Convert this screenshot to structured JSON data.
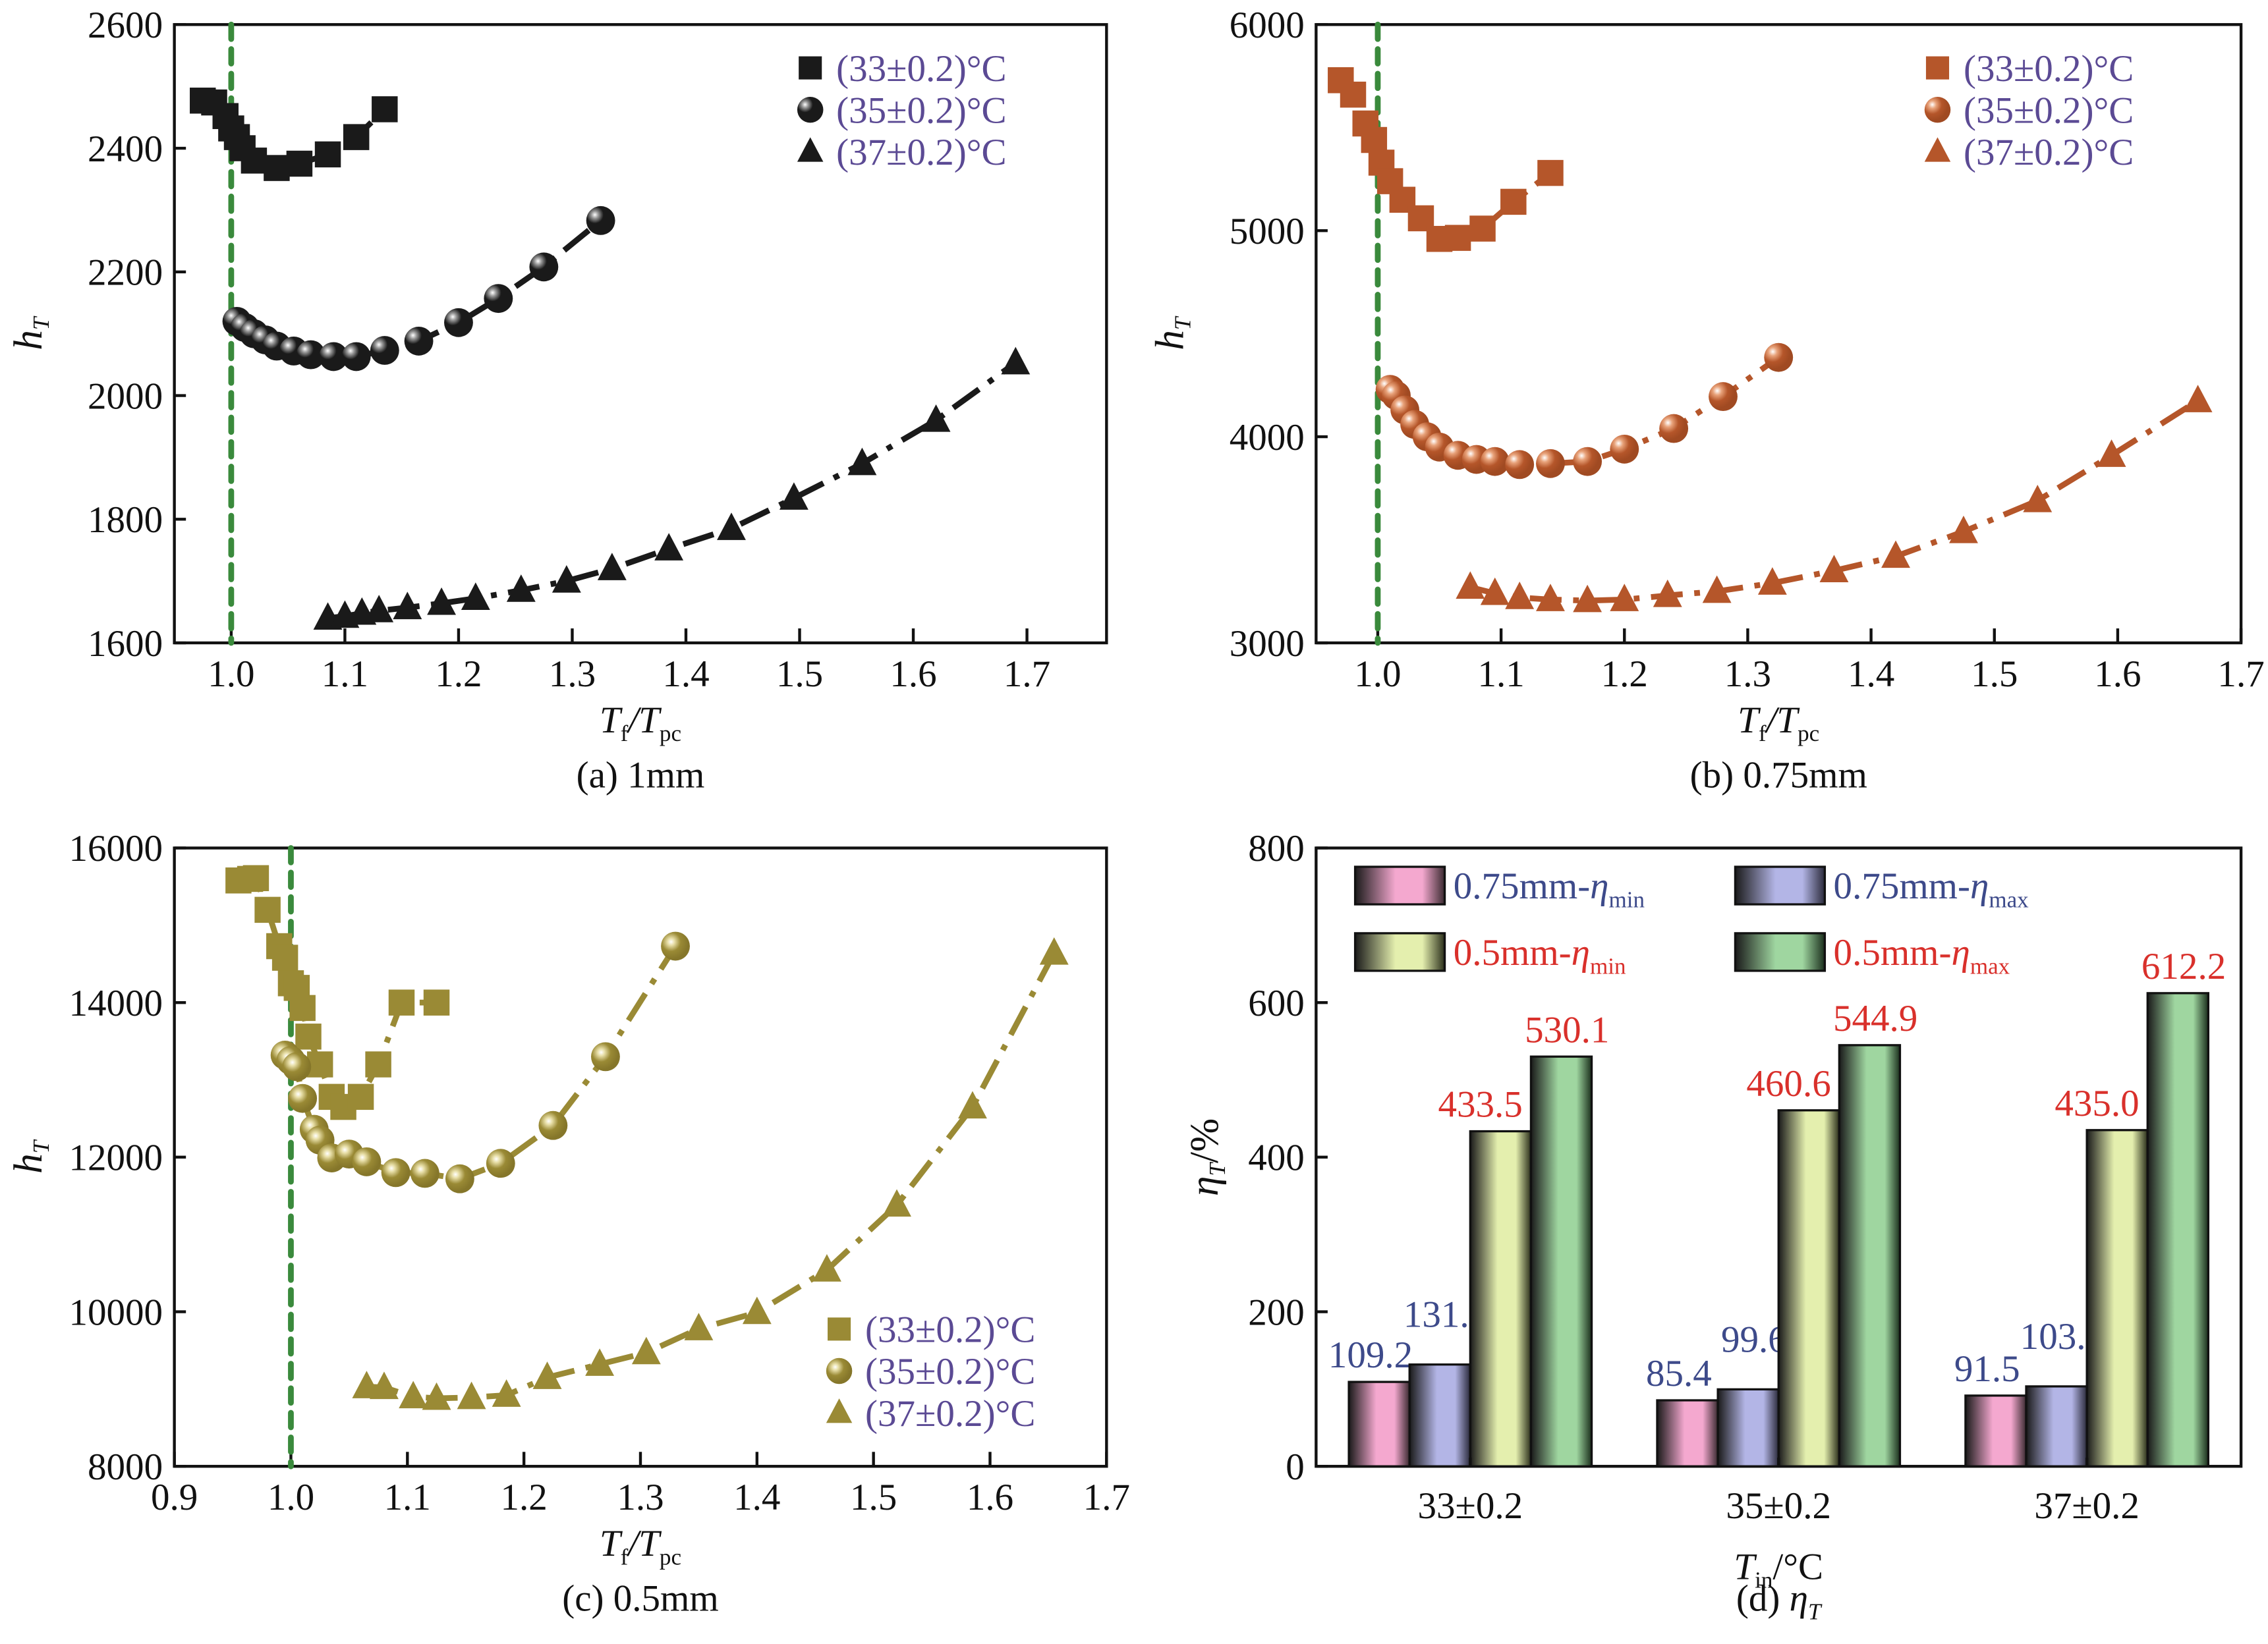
{
  "chart_data": [
    {
      "type": "line",
      "panel": "a",
      "caption": "(a) 1mm",
      "xlabel": "Tf/Tpc",
      "ylabel": "hT",
      "xlim": [
        0.95,
        1.77
      ],
      "ylim": [
        1600,
        2600
      ],
      "xticks": [
        1.0,
        1.1,
        1.2,
        1.3,
        1.4,
        1.5,
        1.6,
        1.7
      ],
      "yticks": [
        1600,
        1800,
        2000,
        2200,
        2400,
        2600
      ],
      "reference_line_x": 1.0,
      "legend_position": "top-right",
      "color": "#1a1a1a",
      "series": [
        {
          "name": "(33±0.2)°C",
          "marker": "square",
          "x": [
            0.975,
            0.985,
            0.995,
            1.0,
            1.005,
            1.01,
            1.02,
            1.04,
            1.06,
            1.085,
            1.11,
            1.135
          ],
          "y": [
            2477,
            2474,
            2452,
            2432,
            2418,
            2400,
            2380,
            2368,
            2375,
            2390,
            2418,
            2463
          ]
        },
        {
          "name": "(35±0.2)°C",
          "marker": "circle",
          "x": [
            1.005,
            1.012,
            1.02,
            1.03,
            1.04,
            1.055,
            1.07,
            1.09,
            1.11,
            1.135,
            1.165,
            1.2,
            1.235,
            1.275,
            1.325
          ],
          "y": [
            2120,
            2110,
            2100,
            2090,
            2080,
            2072,
            2066,
            2063,
            2063,
            2073,
            2088,
            2118,
            2157,
            2208,
            2283
          ]
        },
        {
          "name": "(37±0.2)°C",
          "marker": "triangle",
          "x": [
            1.085,
            1.1,
            1.115,
            1.13,
            1.155,
            1.185,
            1.215,
            1.255,
            1.295,
            1.335,
            1.385,
            1.44,
            1.495,
            1.555,
            1.62,
            1.69
          ],
          "y": [
            1640,
            1643,
            1648,
            1652,
            1657,
            1664,
            1672,
            1685,
            1700,
            1720,
            1752,
            1785,
            1834,
            1890,
            1960,
            2053
          ]
        }
      ]
    },
    {
      "type": "line",
      "panel": "b",
      "caption": "(b) 0.75mm",
      "xlabel": "Tf/Tpc",
      "ylabel": "hT",
      "xlim": [
        0.95,
        1.7
      ],
      "ylim": [
        3000,
        6000
      ],
      "xticks": [
        1.0,
        1.1,
        1.2,
        1.3,
        1.4,
        1.5,
        1.6,
        1.7
      ],
      "yticks": [
        3000,
        4000,
        5000,
        6000
      ],
      "reference_line_x": 1.0,
      "legend_position": "top-right",
      "color": "#b5562a",
      "series": [
        {
          "name": "(33±0.2)°C",
          "marker": "square",
          "x": [
            0.97,
            0.98,
            0.99,
            0.997,
            1.003,
            1.01,
            1.02,
            1.035,
            1.05,
            1.065,
            1.085,
            1.11,
            1.14
          ],
          "y": [
            5730,
            5660,
            5520,
            5440,
            5330,
            5240,
            5150,
            5060,
            4960,
            4965,
            5010,
            5140,
            5280
          ]
        },
        {
          "name": "(35±0.2)°C",
          "marker": "circle",
          "x": [
            1.01,
            1.015,
            1.022,
            1.03,
            1.04,
            1.05,
            1.065,
            1.08,
            1.095,
            1.115,
            1.14,
            1.17,
            1.2,
            1.24,
            1.28,
            1.325
          ],
          "y": [
            4230,
            4200,
            4130,
            4060,
            4000,
            3950,
            3910,
            3890,
            3880,
            3865,
            3870,
            3880,
            3940,
            4040,
            4195,
            4385
          ]
        },
        {
          "name": "(37±0.2)°C",
          "marker": "triangle",
          "x": [
            1.075,
            1.095,
            1.115,
            1.14,
            1.17,
            1.2,
            1.235,
            1.275,
            1.32,
            1.37,
            1.42,
            1.475,
            1.535,
            1.595,
            1.665
          ],
          "y": [
            3270,
            3240,
            3220,
            3210,
            3205,
            3210,
            3230,
            3250,
            3290,
            3350,
            3420,
            3540,
            3690,
            3910,
            4175
          ]
        }
      ]
    },
    {
      "type": "line",
      "panel": "c",
      "caption": "(c) 0.5mm",
      "xlabel": "Tf/Tpc",
      "ylabel": "hT",
      "xlim": [
        0.9,
        1.7
      ],
      "ylim": [
        8000,
        16000
      ],
      "xticks": [
        0.9,
        1.0,
        1.1,
        1.2,
        1.3,
        1.4,
        1.5,
        1.6,
        1.7
      ],
      "yticks": [
        8000,
        10000,
        12000,
        14000,
        16000
      ],
      "reference_line_x": 1.0,
      "legend_position": "bottom-right",
      "color": "#9a8a35",
      "series": [
        {
          "name": "(33±0.2)°C",
          "marker": "square",
          "x": [
            0.955,
            0.965,
            0.97,
            0.98,
            0.99,
            0.995,
            1.0,
            1.005,
            1.01,
            1.015,
            1.025,
            1.035,
            1.045,
            1.06,
            1.075,
            1.095,
            1.125
          ],
          "y": [
            15580,
            15600,
            15610,
            15200,
            14730,
            14580,
            14250,
            14190,
            13930,
            13560,
            13200,
            12780,
            12650,
            12780,
            13200,
            14000,
            14000
          ]
        },
        {
          "name": "(35±0.2)°C",
          "marker": "circle",
          "x": [
            0.995,
            1.0,
            1.005,
            1.01,
            1.02,
            1.025,
            1.035,
            1.05,
            1.065,
            1.09,
            1.115,
            1.145,
            1.18,
            1.225,
            1.27,
            1.33
          ],
          "y": [
            13320,
            13250,
            13170,
            12760,
            12360,
            12220,
            11990,
            12040,
            11940,
            11800,
            11790,
            11720,
            11920,
            12410,
            13300,
            14730
          ]
        },
        {
          "name": "(37±0.2)°C",
          "marker": "triangle",
          "x": [
            1.065,
            1.08,
            1.105,
            1.125,
            1.155,
            1.185,
            1.22,
            1.265,
            1.305,
            1.35,
            1.4,
            1.46,
            1.52,
            1.585,
            1.655
          ],
          "y": [
            9030,
            9020,
            8900,
            8880,
            8890,
            8920,
            9150,
            9320,
            9470,
            9780,
            9990,
            10540,
            11380,
            12650,
            14640
          ]
        }
      ]
    },
    {
      "type": "bar",
      "panel": "d",
      "caption": "(d) ηT",
      "xlabel": "Tin/°C",
      "ylabel": "ηT/%",
      "ylim": [
        0,
        800
      ],
      "yticks": [
        0,
        200,
        400,
        600,
        800
      ],
      "categories": [
        "33±0.2",
        "35±0.2",
        "37±0.2"
      ],
      "legend_position": "top",
      "series": [
        {
          "name": "0.75mm-ηmin",
          "color": "#f4a8cf",
          "label_color": "#3d4a8a",
          "values": [
            109.2,
            85.4,
            91.5
          ],
          "labels": [
            "109.2",
            "85.4",
            "91.5"
          ]
        },
        {
          "name": "0.75mm-ηmax",
          "color": "#b3b5e6",
          "label_color": "#3d4a8a",
          "values": [
            131.7,
            99.6,
            103.4
          ],
          "labels": [
            "131.7",
            "99.6",
            "103.4"
          ]
        },
        {
          "name": "0.5mm-ηmin",
          "color": "#e4efae",
          "label_color": "#d9302b",
          "values": [
            433.5,
            460.6,
            435.0
          ],
          "labels": [
            "433.5",
            "460.6",
            "435.0"
          ]
        },
        {
          "name": "0.5mm-ηmax",
          "color": "#9fd6a0",
          "label_color": "#d9302b",
          "values": [
            530.1,
            544.9,
            612.2
          ],
          "labels": [
            "530.1",
            "544.9",
            "612.2"
          ]
        }
      ]
    }
  ],
  "legend_text_color": "#5b4a94",
  "reference_line_color": "#3a8a3c"
}
